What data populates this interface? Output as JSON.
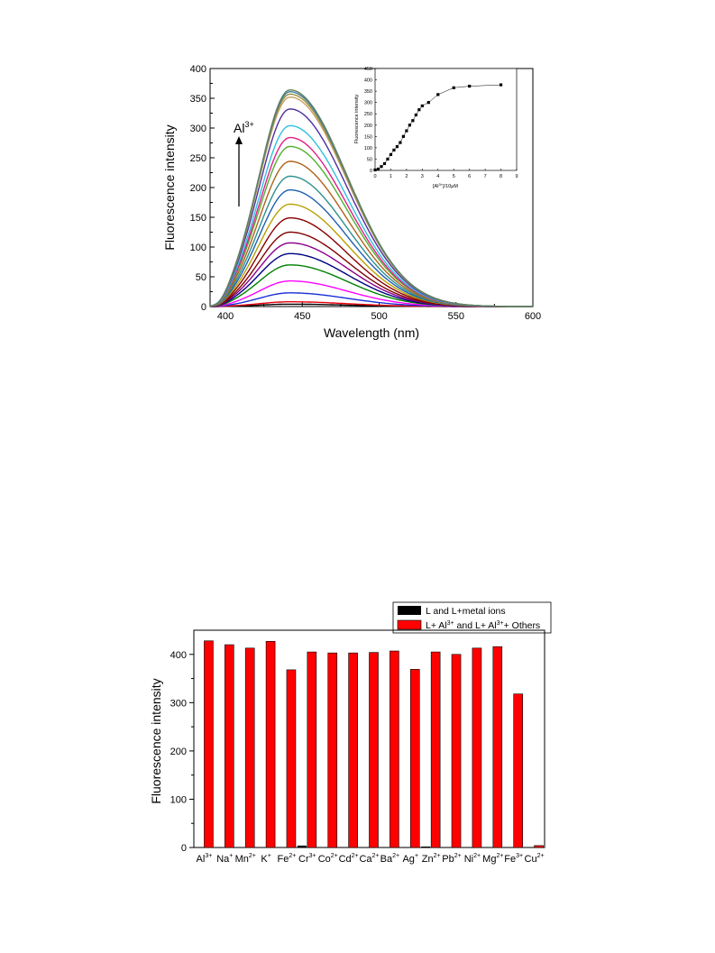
{
  "chart_data": [
    {
      "type": "line",
      "title": "",
      "xlabel": "Wavelength (nm)",
      "ylabel": "Fluorescence intensity",
      "xlim": [
        390,
        600
      ],
      "ylim": [
        0,
        400
      ],
      "xticks": [
        400,
        450,
        500,
        550,
        600
      ],
      "yticks": [
        0,
        50,
        100,
        150,
        200,
        250,
        300,
        350,
        400
      ],
      "peak_wavelength": 442,
      "annotation": {
        "ion": "Al",
        "charge": "3+"
      },
      "series": [
        {
          "peak": 4,
          "color": "#000000"
        },
        {
          "peak": 8,
          "color": "#e8000b"
        },
        {
          "peak": 23,
          "color": "#1a2fd6"
        },
        {
          "peak": 43,
          "color": "#ff00ff"
        },
        {
          "peak": 70,
          "color": "#008000"
        },
        {
          "peak": 89,
          "color": "#000080"
        },
        {
          "peak": 107,
          "color": "#8b008b"
        },
        {
          "peak": 125,
          "color": "#800000"
        },
        {
          "peak": 149,
          "color": "#8b0000"
        },
        {
          "peak": 172,
          "color": "#b8a000"
        },
        {
          "peak": 196,
          "color": "#1e5fb0"
        },
        {
          "peak": 219,
          "color": "#2f8f8f"
        },
        {
          "peak": 244,
          "color": "#b0601a"
        },
        {
          "peak": 269,
          "color": "#50b030"
        },
        {
          "peak": 284,
          "color": "#e0208a"
        },
        {
          "peak": 304,
          "color": "#30c0e0"
        },
        {
          "peak": 332,
          "color": "#5030a0"
        },
        {
          "peak": 352,
          "color": "#c8a060"
        },
        {
          "peak": 357,
          "color": "#a09040"
        },
        {
          "peak": 361,
          "color": "#4080a0"
        },
        {
          "peak": 364,
          "color": "#608060"
        }
      ],
      "inset": {
        "type": "scatter",
        "xlabel_prefix": "[Al",
        "xlabel_sup": "3+",
        "xlabel_suffix": "]/10μM",
        "ylabel": "Fluorescence intensity",
        "xlim": [
          0,
          9
        ],
        "ylim": [
          0,
          450
        ],
        "xticks": [
          0,
          1,
          2,
          3,
          4,
          5,
          6,
          7,
          8,
          9
        ],
        "yticks": [
          0,
          50,
          100,
          150,
          200,
          250,
          300,
          350,
          400,
          450
        ],
        "x": [
          0,
          0.2,
          0.4,
          0.6,
          0.8,
          1.0,
          1.2,
          1.4,
          1.6,
          1.8,
          2.0,
          2.2,
          2.4,
          2.6,
          2.8,
          3.0,
          3.4,
          4.0,
          5.0,
          6.0,
          8.0
        ],
        "y": [
          2,
          6,
          17,
          30,
          50,
          70,
          90,
          105,
          123,
          150,
          175,
          200,
          220,
          245,
          268,
          285,
          300,
          335,
          365,
          372,
          378
        ]
      }
    },
    {
      "type": "bar",
      "title": "",
      "xlabel": "",
      "ylabel": "Fluorescence intensity",
      "ylim": [
        0,
        450
      ],
      "yticks": [
        0,
        100,
        200,
        300,
        400
      ],
      "categories": [
        {
          "ion": "Al",
          "charge": "3+"
        },
        {
          "ion": "Na",
          "charge": "+"
        },
        {
          "ion": "Mn",
          "charge": "2+"
        },
        {
          "ion": "K",
          "charge": "+"
        },
        {
          "ion": "Fe",
          "charge": "2+"
        },
        {
          "ion": "Cr",
          "charge": "3+"
        },
        {
          "ion": "Co",
          "charge": "2+"
        },
        {
          "ion": "Cd",
          "charge": "2+"
        },
        {
          "ion": "Ca",
          "charge": "2+"
        },
        {
          "ion": "Ba",
          "charge": "2+"
        },
        {
          "ion": "Ag",
          "charge": "+"
        },
        {
          "ion": "Zn",
          "charge": "2+"
        },
        {
          "ion": "Pb",
          "charge": "2+"
        },
        {
          "ion": "Ni",
          "charge": "2+"
        },
        {
          "ion": "Mg",
          "charge": "2+"
        },
        {
          "ion": "Fe",
          "charge": "3+"
        },
        {
          "ion": "Cu",
          "charge": "2+"
        }
      ],
      "series": [
        {
          "name": "L and L+metal ions",
          "color": "#000000",
          "values": [
            1,
            1,
            1,
            1,
            1,
            4,
            1,
            1,
            1,
            1,
            1,
            2,
            1,
            1,
            1,
            1,
            1
          ]
        },
        {
          "color": "#ff0000",
          "name_parts": {
            "a": "L+ Al",
            "a_sup": "3+",
            "b": " and L+ Al",
            "b_sup": "3+",
            "c": "+ Others"
          },
          "values": [
            428,
            420,
            413,
            427,
            368,
            405,
            403,
            403,
            404,
            407,
            369,
            405,
            400,
            413,
            416,
            318,
            4
          ]
        }
      ],
      "legend_position": "top-right"
    }
  ]
}
